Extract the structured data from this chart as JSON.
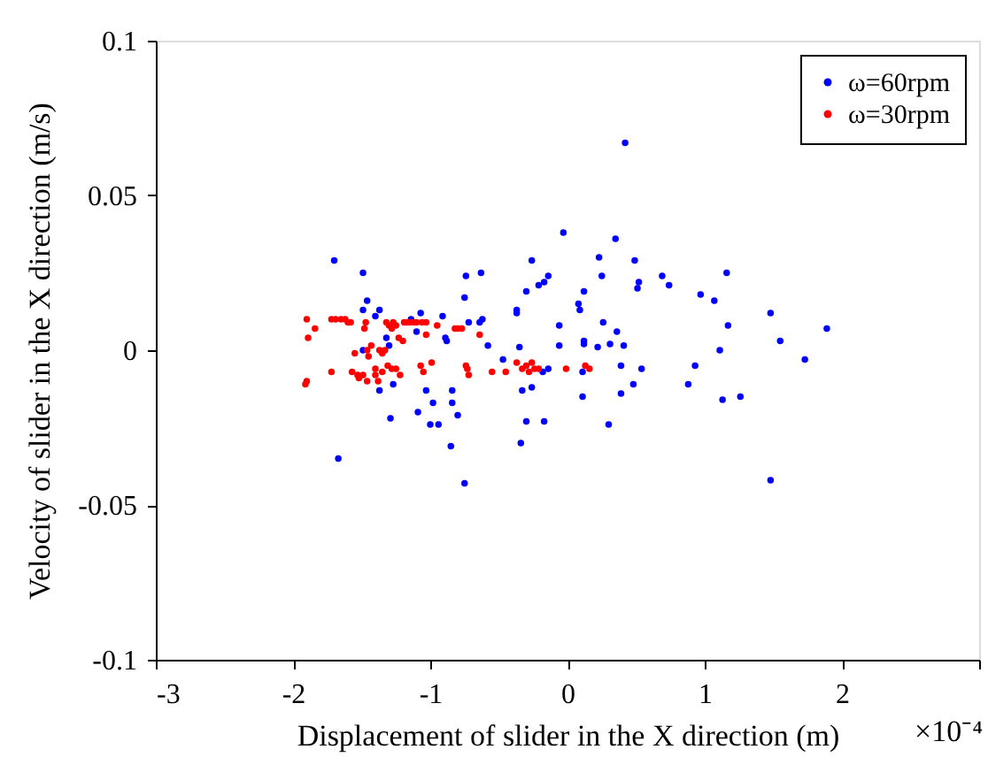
{
  "chart_data": {
    "type": "scatter",
    "xlabel": "Displacement of slider in the X direction (m)",
    "ylabel": "Velocity of slider in the X direction (m/s)",
    "annotations": [
      "×10⁻⁴"
    ],
    "xlim": [
      -3,
      3
    ],
    "xticks": [
      -3,
      -2,
      -1,
      0,
      1,
      2,
      {
        "value": 3,
        "label": null
      }
    ],
    "ylim": [
      -0.1,
      0.1
    ],
    "yticks": [
      -0.1,
      -0.05,
      0,
      0.05,
      0.1
    ],
    "grid": false,
    "legend": "top right",
    "marker": "circle",
    "series": [
      {
        "name": "ω=60rpm",
        "color": "#0000ff",
        "x": [
          -1.7,
          -1.49,
          -1.49,
          -1.46,
          -1.37,
          -1.4,
          -1.32,
          -1.67,
          -1.49,
          -1.37,
          -1.27,
          -1.29,
          -1.3,
          -1.14,
          -1.1,
          -1.07,
          -1.03,
          -1.09,
          -0.98,
          -1.0,
          -0.94,
          -0.91,
          -0.89,
          -0.88,
          -0.85,
          -0.84,
          -0.84,
          -0.8,
          -0.75,
          -0.74,
          -0.75,
          -0.72,
          -0.63,
          -0.64,
          -0.62,
          -0.58,
          -0.47,
          -0.37,
          -0.37,
          -0.35,
          -0.34,
          -0.33,
          -0.3,
          -0.3,
          -0.26,
          -0.26,
          -0.21,
          -0.17,
          -0.17,
          -0.14,
          -0.14,
          -0.18,
          -0.06,
          -0.06,
          -0.03,
          0.08,
          0.09,
          0.12,
          0.12,
          0.12,
          0.11,
          0.11,
          0.22,
          0.23,
          0.25,
          0.26,
          0.3,
          0.31,
          0.35,
          0.36,
          0.39,
          0.39,
          0.41,
          0.42,
          0.49,
          0.51,
          0.52,
          0.48,
          0.54,
          0.69,
          0.74,
          0.88,
          0.93,
          0.97,
          1.07,
          1.11,
          1.13,
          1.16,
          1.17,
          1.26,
          1.48,
          1.48,
          1.55,
          1.73,
          1.89
        ],
        "values": [
          0.029,
          0.025,
          0.013,
          0.016,
          0.013,
          0.011,
          0.004,
          -0.035,
          0.0,
          -0.013,
          -0.011,
          -0.022,
          0.0015,
          0.01,
          0.006,
          0.012,
          -0.013,
          -0.02,
          -0.017,
          -0.024,
          -0.024,
          0.011,
          0.004,
          0.003,
          -0.031,
          -0.013,
          -0.017,
          -0.021,
          0.017,
          0.024,
          -0.043,
          0.009,
          0.025,
          0.009,
          0.01,
          0.0015,
          -0.003,
          0.012,
          0.013,
          0.001,
          -0.03,
          -0.013,
          0.019,
          -0.023,
          0.029,
          -0.012,
          0.021,
          0.022,
          -0.023,
          0.024,
          -0.006,
          -0.007,
          0.008,
          0.0015,
          0.038,
          0.015,
          0.013,
          0.003,
          0.002,
          0.019,
          -0.007,
          -0.015,
          0.001,
          0.03,
          0.024,
          0.009,
          -0.024,
          0.002,
          0.036,
          0.006,
          -0.005,
          -0.014,
          0.0015,
          0.067,
          0.029,
          0.02,
          0.022,
          -0.011,
          -0.006,
          0.024,
          0.021,
          -0.011,
          -0.005,
          0.018,
          0.016,
          0.0,
          -0.016,
          0.025,
          0.008,
          -0.015,
          0.012,
          -0.042,
          0.003,
          -0.003,
          0.007
        ]
      },
      {
        "name": "ω=30rpm",
        "color": "#ff0000",
        "x": [
          -1.9,
          -1.89,
          -1.84,
          -1.9,
          -1.91,
          -1.72,
          -1.69,
          -1.65,
          -1.62,
          -1.72,
          -1.6,
          -1.58,
          -1.57,
          -1.55,
          -1.53,
          -1.52,
          -1.49,
          -1.48,
          -1.47,
          -1.46,
          -1.45,
          -1.43,
          -1.46,
          -1.4,
          -1.4,
          -1.37,
          -1.35,
          -1.33,
          -1.38,
          -1.35,
          -1.32,
          -1.3,
          -1.28,
          -1.27,
          -1.25,
          -1.31,
          -1.28,
          -1.25,
          -1.22,
          -1.23,
          -1.2,
          -1.19,
          -1.17,
          -1.15,
          -1.12,
          -1.1,
          -1.06,
          -1.03,
          -1.03,
          -1.07,
          -1.05,
          -0.99,
          -0.95,
          -0.82,
          -0.8,
          -0.77,
          -0.74,
          -0.73,
          -0.72,
          -0.64,
          -0.55,
          -0.45,
          -0.37,
          -0.33,
          -0.3,
          -0.28,
          -0.26,
          -0.24,
          -0.21,
          -0.01,
          0.13,
          0.16
        ],
        "values": [
          0.01,
          0.004,
          0.007,
          -0.01,
          -0.011,
          0.01,
          0.01,
          0.01,
          0.01,
          -0.007,
          0.009,
          0.009,
          -0.007,
          -0.001,
          -0.008,
          -0.009,
          -0.008,
          0.007,
          0.009,
          0.0,
          -0.002,
          0.0015,
          -0.01,
          -0.008,
          -0.006,
          0.0,
          -0.001,
          0.0,
          -0.01,
          -0.007,
          0.009,
          0.008,
          0.007,
          0.009,
          0.008,
          -0.005,
          -0.006,
          -0.006,
          -0.008,
          0.004,
          0.003,
          0.009,
          0.009,
          0.009,
          0.009,
          0.009,
          0.009,
          0.009,
          0.005,
          -0.005,
          -0.007,
          -0.004,
          0.008,
          0.007,
          0.007,
          0.007,
          -0.005,
          -0.006,
          -0.008,
          0.005,
          -0.007,
          -0.007,
          -0.004,
          -0.006,
          -0.005,
          -0.007,
          -0.004,
          -0.006,
          -0.006,
          -0.006,
          -0.005,
          -0.006
        ]
      }
    ]
  }
}
